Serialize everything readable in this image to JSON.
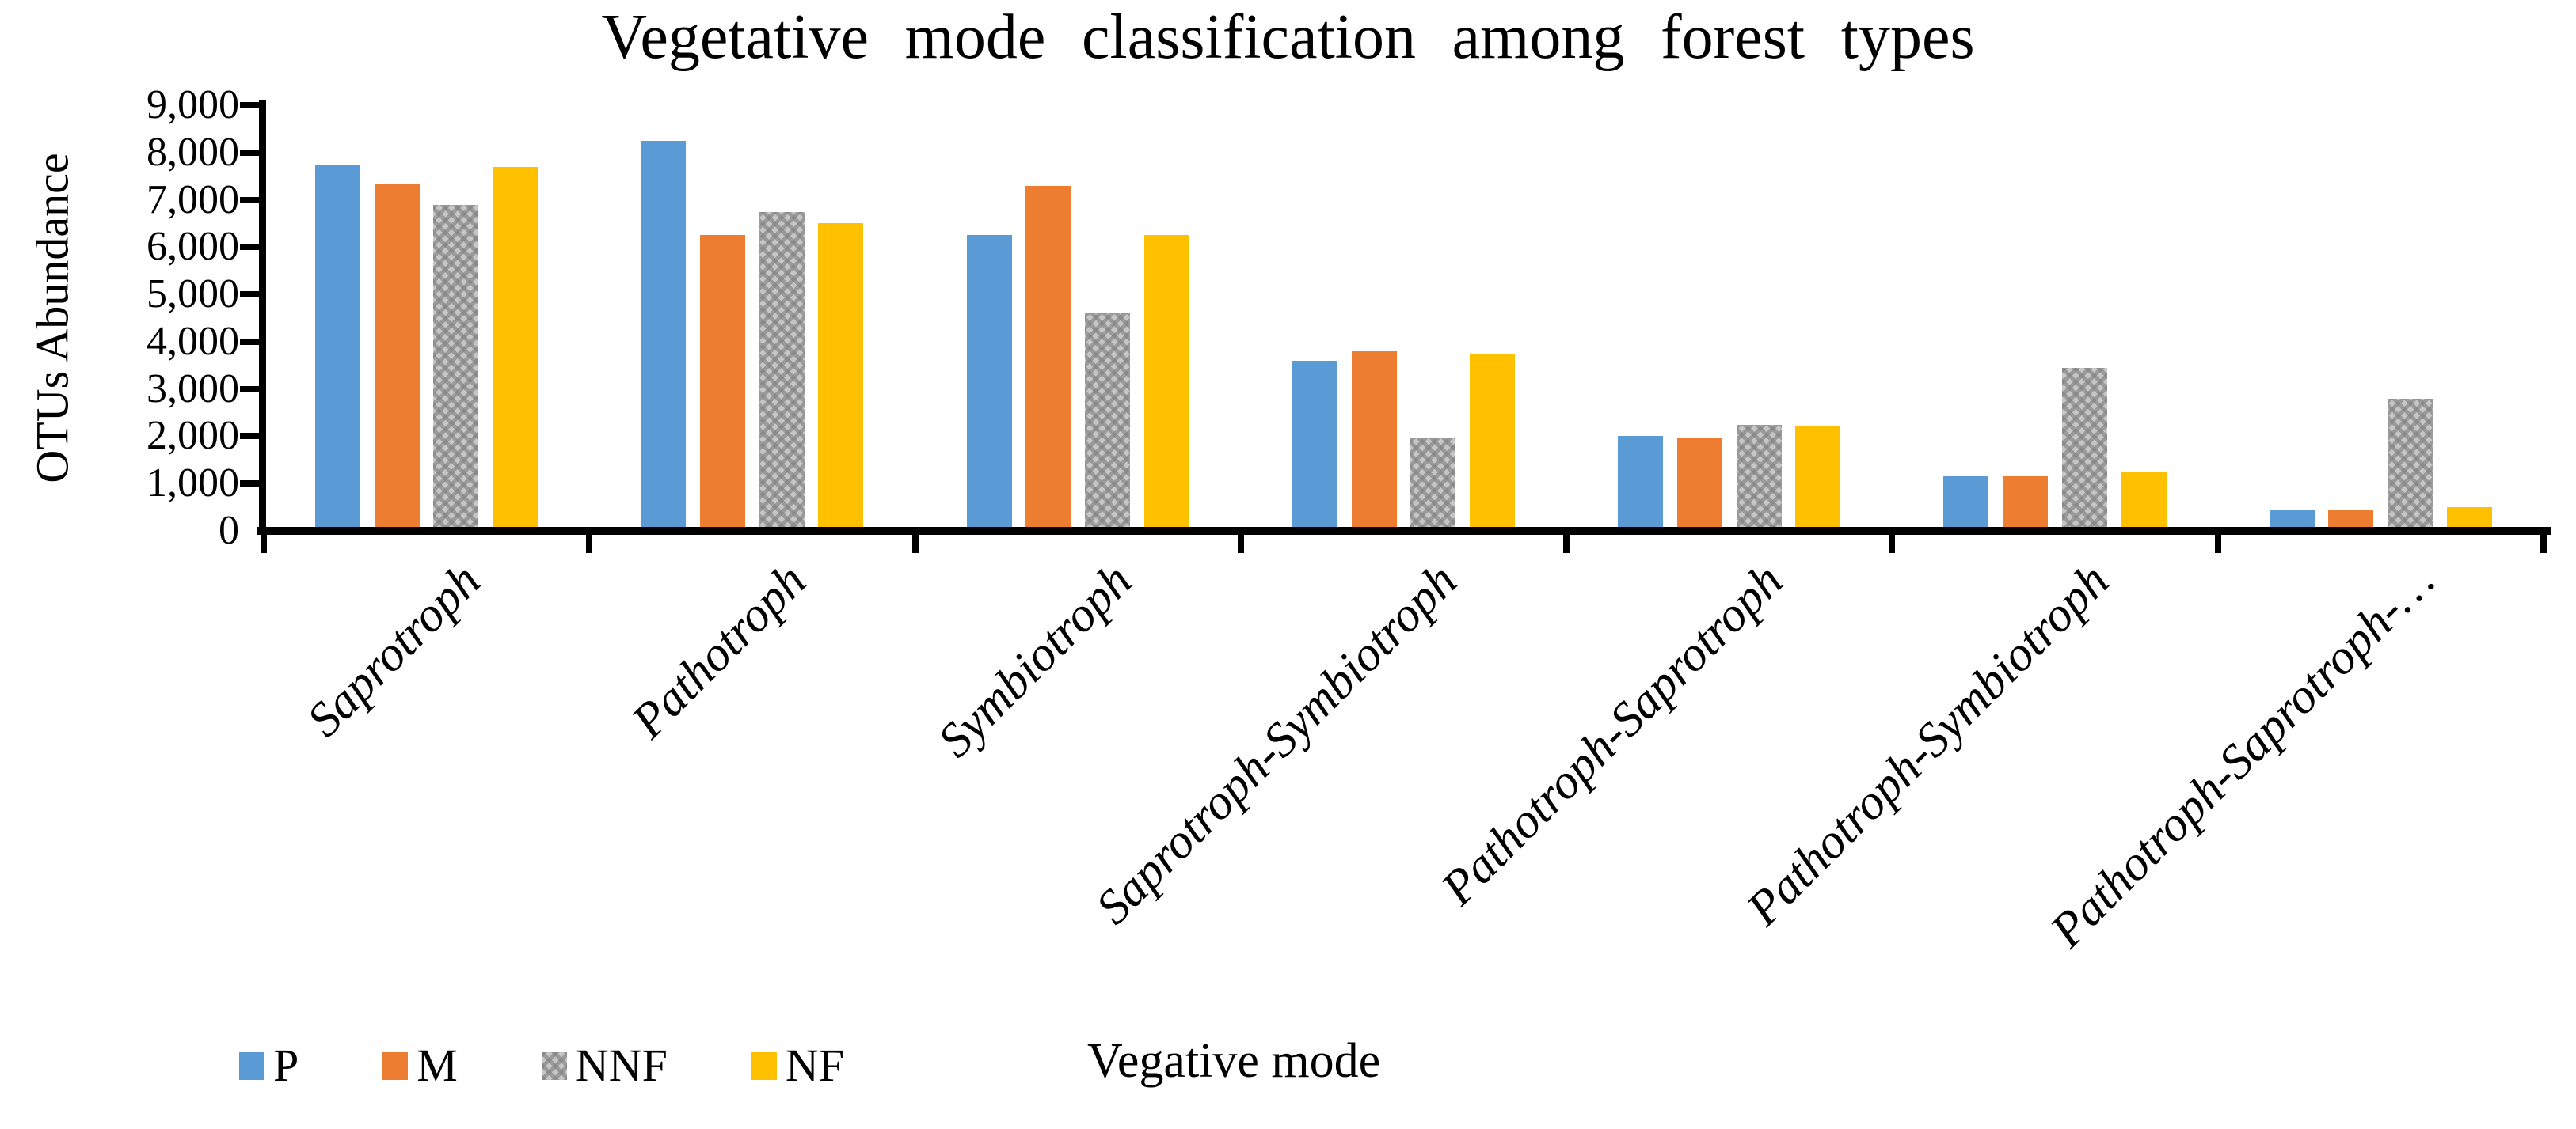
{
  "title": "Vegetative mode classification among forest types",
  "y_axis": {
    "title": "OTUs Abundance",
    "tick_labels": [
      "0",
      "1,000",
      "2,000",
      "3,000",
      "4,000",
      "5,000",
      "6,000",
      "7,000",
      "8,000",
      "9,000"
    ]
  },
  "x_axis": {
    "title": "Vegative mode"
  },
  "legend": {
    "items": [
      {
        "label": "P",
        "color": "#5B9BD5",
        "pattern": "solid"
      },
      {
        "label": "M",
        "color": "#ED7D31",
        "pattern": "solid"
      },
      {
        "label": "NNF",
        "color": "#A5A5A5",
        "pattern": "checker"
      },
      {
        "label": "NF",
        "color": "#FFC000",
        "pattern": "solid"
      }
    ],
    "position": "bottom-left"
  },
  "chart_data": {
    "type": "bar",
    "title": "Vegetative mode classification among forest types",
    "xlabel": "Vegative mode",
    "ylabel": "OTUs Abundance",
    "ylim": [
      0,
      9000
    ],
    "ytick_step": 1000,
    "ytick_labels": [
      "0",
      "1,000",
      "2,000",
      "3,000",
      "4,000",
      "5,000",
      "6,000",
      "7,000",
      "8,000",
      "9,000"
    ],
    "grid": false,
    "legend_position": "bottom-left",
    "categories": [
      "Saprotroph",
      "Pathotroph",
      "Symbiotroph",
      "Saprotroph-Symbiotroph",
      "Pathotroph-Saprotroph",
      "Pathotroph-Symbiotroph",
      "Pathotroph-Saprotroph-…"
    ],
    "series": [
      {
        "name": "P",
        "color": "#5B9BD5",
        "pattern": "solid",
        "values": [
          7750,
          8250,
          6250,
          3600,
          2000,
          1150,
          450
        ]
      },
      {
        "name": "M",
        "color": "#ED7D31",
        "pattern": "solid",
        "values": [
          7350,
          6250,
          7300,
          3800,
          1950,
          1150,
          450
        ]
      },
      {
        "name": "NNF",
        "color": "#A5A5A5",
        "pattern": "checker",
        "values": [
          6900,
          6750,
          4600,
          1950,
          2250,
          3450,
          2800
        ]
      },
      {
        "name": "NF",
        "color": "#FFC000",
        "pattern": "solid",
        "values": [
          7700,
          6500,
          6250,
          3750,
          2200,
          1250,
          500
        ]
      }
    ]
  }
}
